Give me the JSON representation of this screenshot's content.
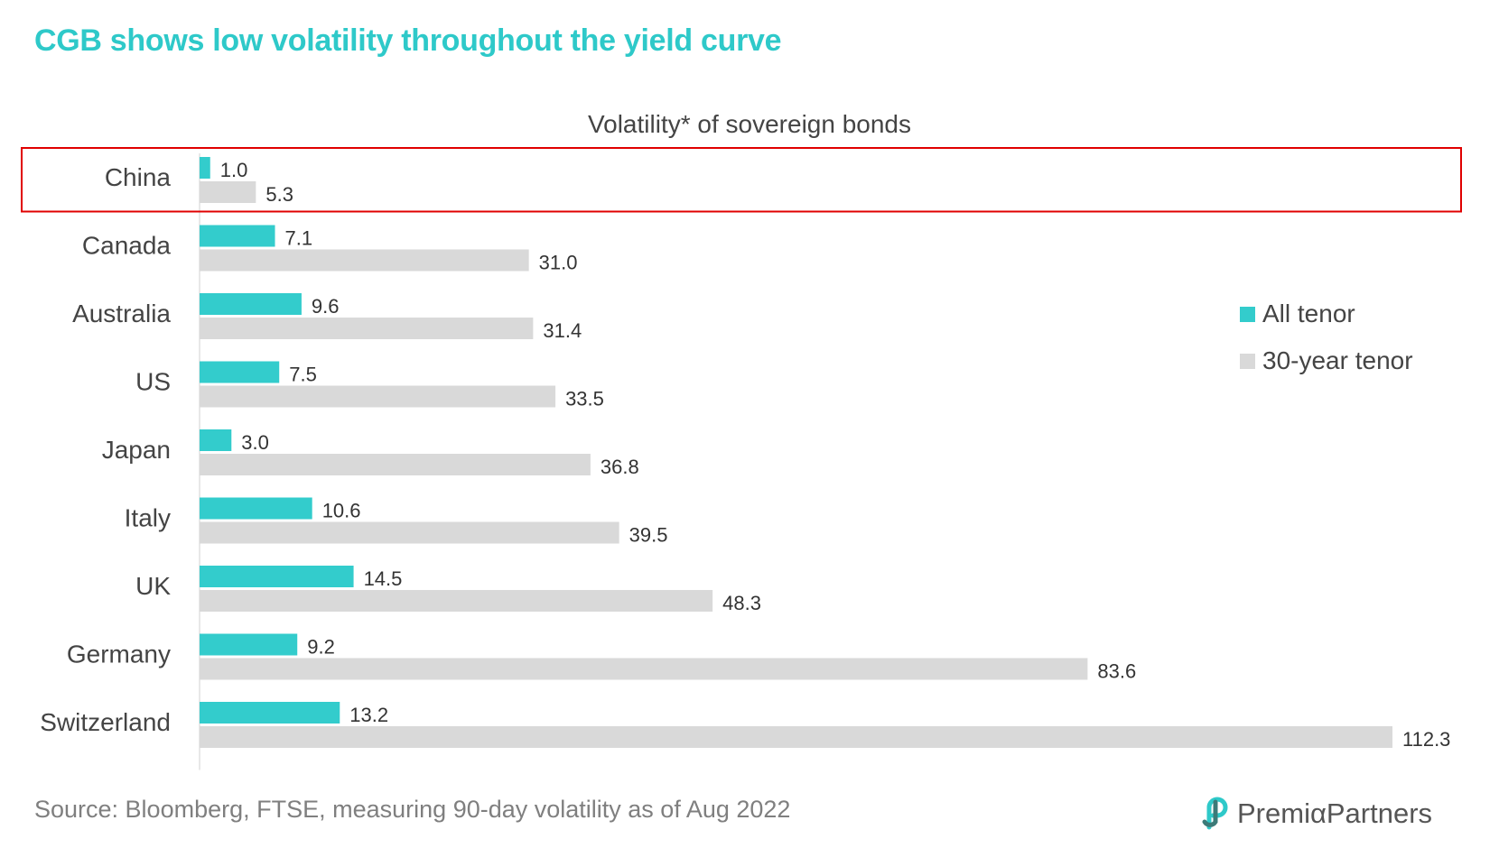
{
  "header": {
    "title": "CGB shows low volatility throughout the yield curve"
  },
  "chart_data": {
    "type": "bar",
    "orientation": "horizontal",
    "title": "Volatility* of sovereign bonds",
    "categories": [
      "China",
      "Canada",
      "Australia",
      "US",
      "Japan",
      "Italy",
      "UK",
      "Germany",
      "Switzerland"
    ],
    "series": [
      {
        "name": "All tenor",
        "color": "#33cccc",
        "values": [
          1.0,
          7.1,
          9.6,
          7.5,
          3.0,
          10.6,
          14.5,
          9.2,
          13.2
        ],
        "labels": [
          "1.0",
          "7.1",
          "9.6",
          "7.5",
          "3.0",
          "10.6",
          "14.5",
          "9.2",
          "13.2"
        ]
      },
      {
        "name": "30-year tenor",
        "color": "#d9d9d9",
        "values": [
          5.3,
          31.0,
          31.4,
          33.5,
          36.8,
          39.5,
          48.3,
          83.6,
          112.3
        ],
        "labels": [
          "5.3",
          "31.0",
          "31.4",
          "33.5",
          "36.8",
          "39.5",
          "48.3",
          "83.6",
          "112.3"
        ]
      }
    ],
    "highlight": {
      "category": "China",
      "color": "#e00000"
    },
    "legend_position": "right",
    "xlim": [
      0,
      112.3
    ],
    "grid": false
  },
  "footer": {
    "source": "Source: Bloomberg, FTSE, measuring 90-day volatility as of Aug 2022",
    "logo_text": "PremiαPartners"
  }
}
